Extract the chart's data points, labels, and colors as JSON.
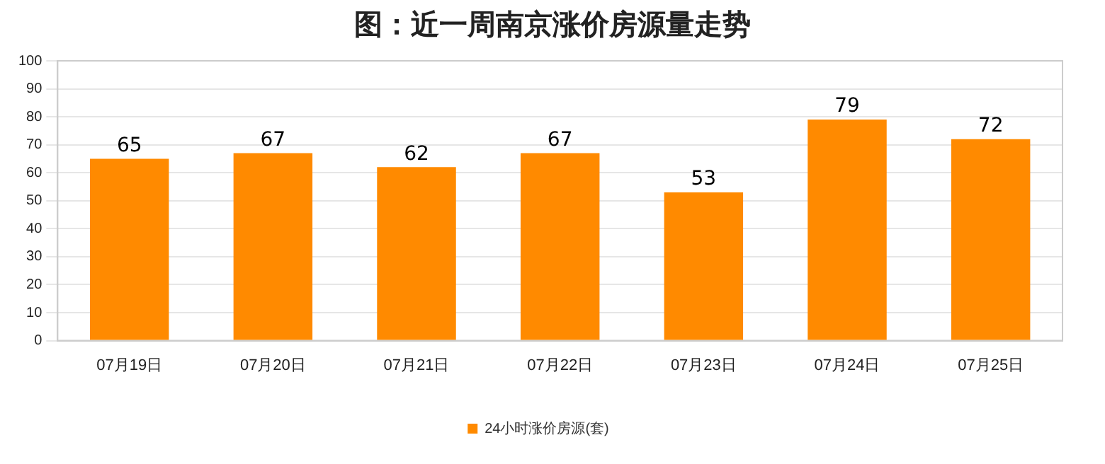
{
  "chart_data": {
    "type": "bar",
    "title": "图：近一周南京涨价房源量走势",
    "categories": [
      "07月19日",
      "07月20日",
      "07月21日",
      "07月22日",
      "07月23日",
      "07月24日",
      "07月25日"
    ],
    "series": [
      {
        "name": "24小时涨价房源(套)",
        "color": "#ff8a00",
        "values": [
          65,
          67,
          62,
          67,
          53,
          79,
          72
        ]
      }
    ],
    "ylim": [
      0,
      100
    ],
    "yticks": [
      0,
      10,
      20,
      30,
      40,
      50,
      60,
      70,
      80,
      90,
      100
    ],
    "grid": "y",
    "legend": "bottom",
    "data_labels": true
  }
}
